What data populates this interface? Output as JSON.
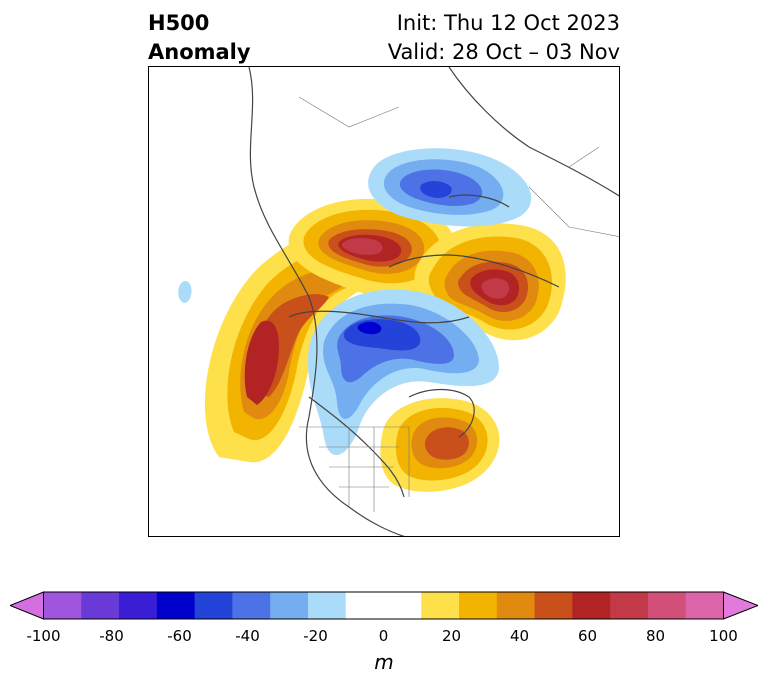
{
  "title": {
    "left_line1": "H500",
    "left_line2": "Anomaly",
    "right_line1": "Init: Thu 12 Oct 2023",
    "right_line2": "Valid: 28 Oct – 03 Nov"
  },
  "map": {
    "type": "polar-stereographic anomaly map",
    "centers": [
      {
        "name": "ridge-north-pacific-alaska",
        "value_range": [
          20,
          70
        ],
        "color": "#b22424"
      },
      {
        "name": "ridge-siberia",
        "value_range": [
          20,
          70
        ],
        "color": "#c23a48"
      },
      {
        "name": "ridge-scandinavia-russia",
        "value_range": [
          20,
          70
        ],
        "color": "#c23a48"
      },
      {
        "name": "trough-arctic-canada",
        "value_range": [
          -70,
          -20
        ],
        "color": "#0000d0"
      },
      {
        "name": "trough-eastern-russia",
        "value_range": [
          -60,
          -20
        ],
        "color": "#2443d8"
      },
      {
        "name": "ridge-eastern-canada",
        "value_range": [
          20,
          60
        ],
        "color": "#c9501a"
      }
    ]
  },
  "colorbar": {
    "unit": "m",
    "ticks": [
      "-100",
      "-80",
      "-60",
      "-40",
      "-20",
      "0",
      "20",
      "40",
      "60",
      "80",
      "100"
    ],
    "colors": [
      "#d56ee0",
      "#a055dd",
      "#6a3ad9",
      "#3a1ed5",
      "#0000cc",
      "#2443d8",
      "#4d72e6",
      "#74aef0",
      "#aadcfa",
      "#ffffff",
      "#ffffff",
      "#fee04a",
      "#f2b400",
      "#e08a10",
      "#c9501a",
      "#b22424",
      "#c23a48",
      "#d14f78",
      "#dc64a8",
      "#e27adb"
    ],
    "extend_low_color": "#d56ee0",
    "extend_high_color": "#e27adb"
  }
}
